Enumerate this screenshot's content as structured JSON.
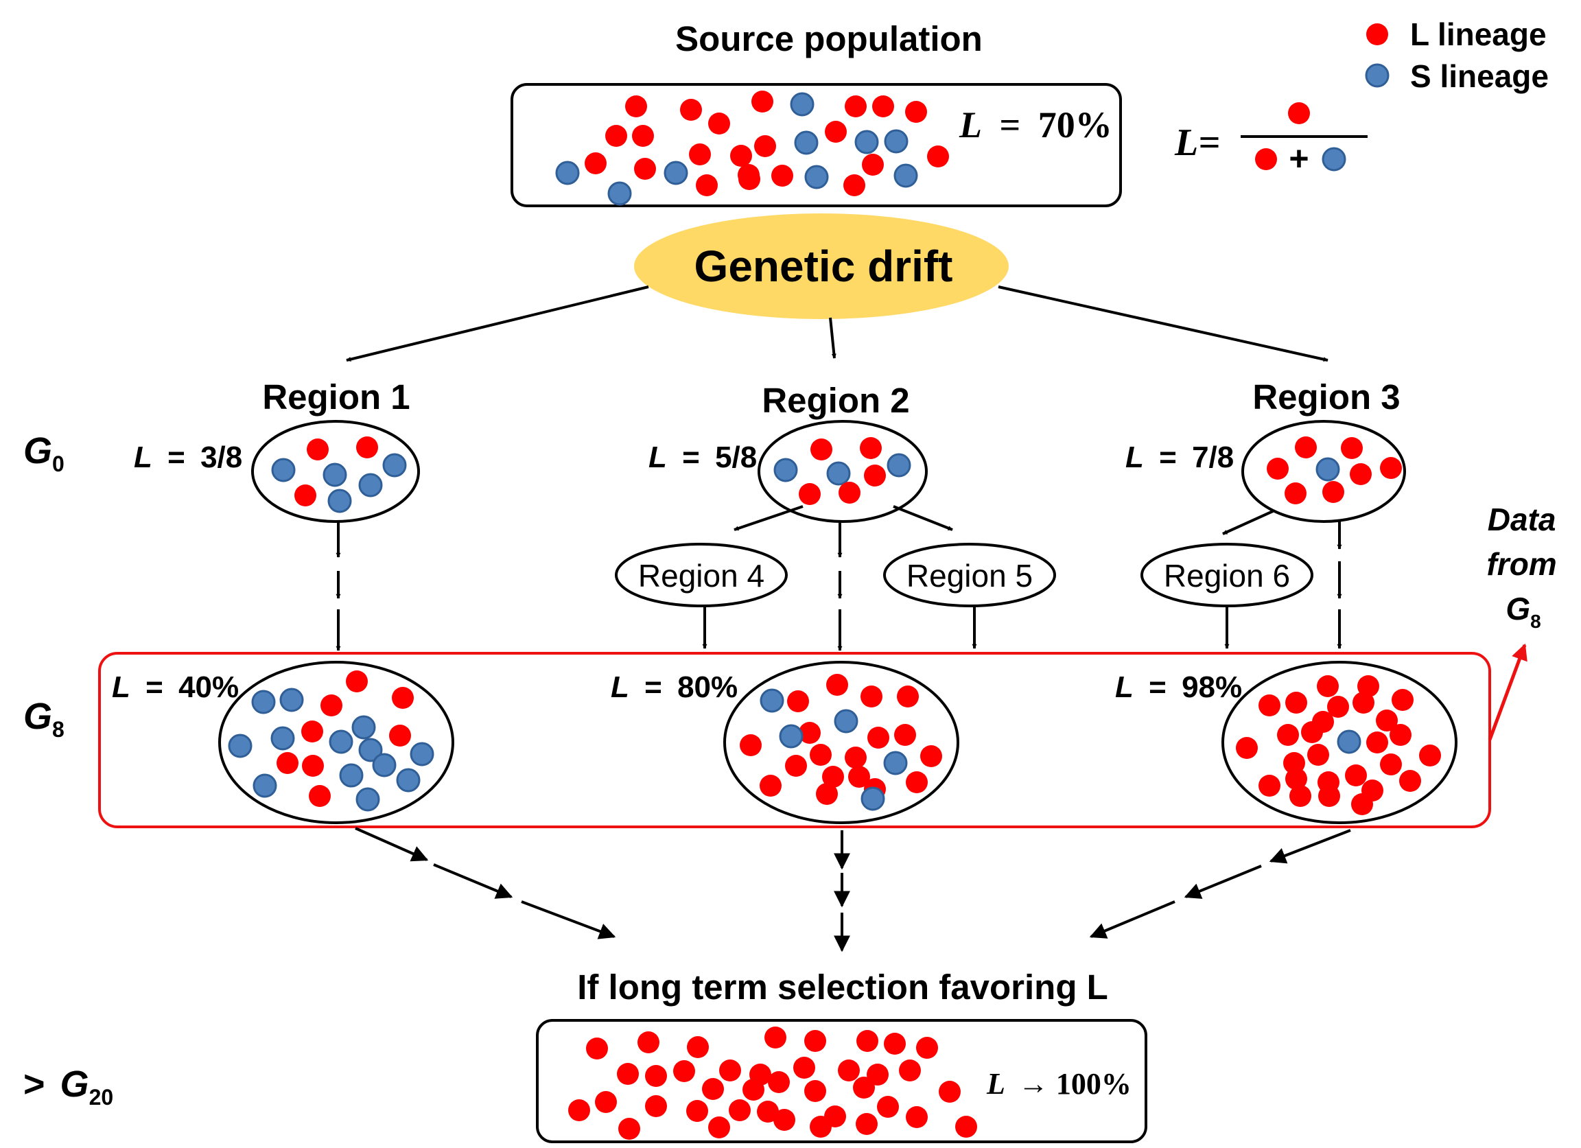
{
  "source": {
    "title": "Source population",
    "frequency": "70%"
  },
  "legend": {
    "l_label": "L lineage",
    "s_label": "S lineage"
  },
  "formula": {
    "lhs": "L=",
    "plus": "+"
  },
  "drift": {
    "label": "Genetic drift"
  },
  "var_letter": "L",
  "equals": "=",
  "generations": {
    "g0": {
      "letter": "G",
      "sub": "0"
    },
    "g8": {
      "letter": "G",
      "sub": "8"
    },
    "g20": {
      "prefix": ">",
      "letter": "G",
      "sub": "20"
    }
  },
  "regions": [
    {
      "name": "Region 1",
      "g0_frequency": "3/8",
      "g8_frequency": "40%"
    },
    {
      "name": "Region 2",
      "g0_frequency": "5/8",
      "g8_frequency": "80%"
    },
    {
      "name": "Region 3",
      "g0_frequency": "7/8",
      "g8_frequency": "98%"
    }
  ],
  "subregions": [
    "Region 4",
    "Region 5",
    "Region 6"
  ],
  "data_note": {
    "line1": "Data",
    "line2": "from",
    "letter": "G",
    "sub": "8"
  },
  "selection": {
    "title": "If long term selection favoring L",
    "result": "→ 100%"
  },
  "colors": {
    "l_lineage": "#ff0000",
    "s_lineage": "#4f81bd",
    "s_outline": "#2f5f96",
    "drift_fill": "#ffd966",
    "highlight_box": "#ee1111"
  }
}
